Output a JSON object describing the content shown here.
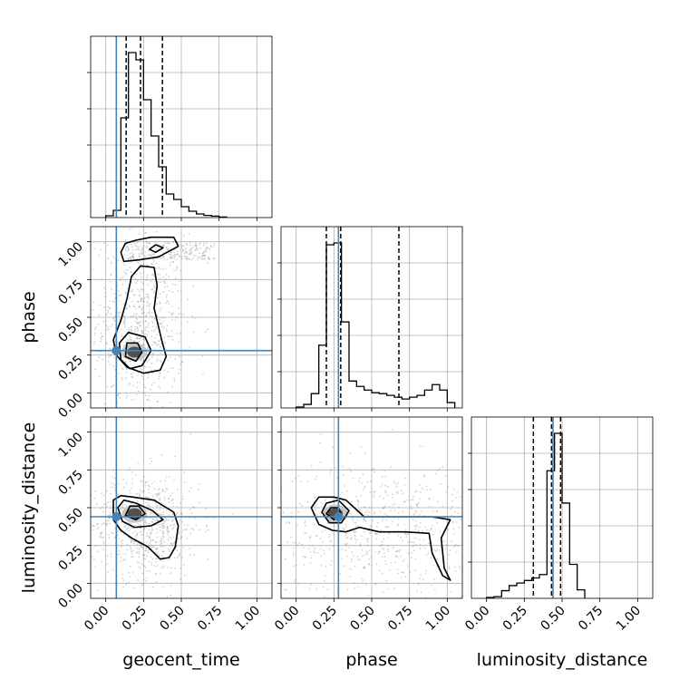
{
  "chart_data": {
    "type": "corner",
    "parameters": [
      "geocent_time",
      "phase",
      "luminosity_distance"
    ],
    "axis_range": [
      -0.1,
      1.1
    ],
    "ticks": [
      0.0,
      0.25,
      0.5,
      0.75,
      1.0
    ],
    "tick_labels": [
      "0.00",
      "0.25",
      "0.50",
      "0.75",
      "1.00"
    ],
    "grid": true,
    "injection_color": "#4682b4",
    "truths": {
      "geocent_time": 0.07,
      "phase": 0.28,
      "luminosity_distance": 0.44
    },
    "histograms": {
      "geocent_time": {
        "bin_edges": [
          0.0,
          0.05,
          0.1,
          0.15,
          0.2,
          0.25,
          0.3,
          0.35,
          0.4,
          0.45,
          0.5,
          0.55,
          0.6,
          0.65,
          0.7,
          0.75,
          0.8
        ],
        "counts": [
          0.01,
          0.04,
          0.55,
          0.91,
          0.87,
          0.65,
          0.45,
          0.28,
          0.13,
          0.1,
          0.06,
          0.035,
          0.02,
          0.012,
          0.008,
          0.003
        ],
        "quantiles": [
          0.135,
          0.23,
          0.375
        ]
      },
      "phase": {
        "bin_edges": [
          0.0,
          0.05,
          0.1,
          0.15,
          0.2,
          0.25,
          0.3,
          0.35,
          0.4,
          0.45,
          0.5,
          0.55,
          0.6,
          0.65,
          0.7,
          0.75,
          0.8,
          0.85,
          0.9,
          0.95,
          1.0,
          1.05
        ],
        "counts": [
          0.005,
          0.02,
          0.08,
          0.35,
          0.91,
          0.92,
          0.48,
          0.15,
          0.12,
          0.1,
          0.085,
          0.08,
          0.07,
          0.06,
          0.05,
          0.06,
          0.07,
          0.1,
          0.13,
          0.1,
          0.03
        ],
        "quantiles": [
          0.2,
          0.295,
          0.68
        ]
      },
      "luminosity_distance": {
        "bin_edges": [
          0.0,
          0.05,
          0.1,
          0.15,
          0.2,
          0.25,
          0.3,
          0.35,
          0.4,
          0.45,
          0.5,
          0.55,
          0.6,
          0.65
        ],
        "counts": [
          0.005,
          0.01,
          0.045,
          0.075,
          0.09,
          0.105,
          0.12,
          0.14,
          0.75,
          0.97,
          0.56,
          0.2,
          0.05
        ],
        "quantiles": [
          0.31,
          0.43,
          0.49
        ]
      }
    },
    "contours": {
      "phase_vs_geocent_time": [
        [
          [
            0.1,
            0.93
          ],
          [
            0.13,
            0.99
          ],
          [
            0.2,
            1.01
          ],
          [
            0.3,
            1.03
          ],
          [
            0.45,
            1.03
          ],
          [
            0.48,
            0.97
          ],
          [
            0.35,
            0.9
          ],
          [
            0.22,
            0.88
          ],
          [
            0.12,
            0.87
          ]
        ],
        [
          [
            0.29,
            0.95
          ],
          [
            0.33,
            0.98
          ],
          [
            0.38,
            0.96
          ],
          [
            0.33,
            0.93
          ]
        ],
        [
          [
            0.05,
            0.35
          ],
          [
            0.1,
            0.48
          ],
          [
            0.14,
            0.62
          ],
          [
            0.17,
            0.77
          ],
          [
            0.23,
            0.84
          ],
          [
            0.32,
            0.83
          ],
          [
            0.34,
            0.71
          ],
          [
            0.32,
            0.56
          ],
          [
            0.37,
            0.35
          ],
          [
            0.4,
            0.24
          ],
          [
            0.36,
            0.15
          ],
          [
            0.25,
            0.13
          ],
          [
            0.14,
            0.17
          ],
          [
            0.07,
            0.25
          ]
        ],
        [
          [
            0.1,
            0.22
          ],
          [
            0.09,
            0.33
          ],
          [
            0.15,
            0.4
          ],
          [
            0.26,
            0.37
          ],
          [
            0.3,
            0.28
          ],
          [
            0.24,
            0.18
          ],
          [
            0.16,
            0.16
          ]
        ],
        [
          [
            0.13,
            0.24
          ],
          [
            0.14,
            0.33
          ],
          [
            0.21,
            0.33
          ],
          [
            0.24,
            0.27
          ],
          [
            0.2,
            0.21
          ]
        ]
      ],
      "luminosity_distance_vs_geocent_time": [
        [
          [
            0.05,
            0.55
          ],
          [
            0.1,
            0.58
          ],
          [
            0.18,
            0.57
          ],
          [
            0.32,
            0.55
          ],
          [
            0.45,
            0.47
          ],
          [
            0.48,
            0.38
          ],
          [
            0.46,
            0.24
          ],
          [
            0.42,
            0.17
          ],
          [
            0.36,
            0.16
          ],
          [
            0.28,
            0.24
          ],
          [
            0.17,
            0.3
          ],
          [
            0.1,
            0.35
          ],
          [
            0.05,
            0.42
          ]
        ],
        [
          [
            0.08,
            0.5
          ],
          [
            0.12,
            0.55
          ],
          [
            0.2,
            0.53
          ],
          [
            0.31,
            0.48
          ],
          [
            0.38,
            0.42
          ],
          [
            0.3,
            0.38
          ],
          [
            0.19,
            0.37
          ],
          [
            0.11,
            0.41
          ]
        ],
        [
          [
            0.13,
            0.45
          ],
          [
            0.16,
            0.51
          ],
          [
            0.22,
            0.51
          ],
          [
            0.26,
            0.46
          ],
          [
            0.2,
            0.42
          ]
        ]
      ],
      "luminosity_distance_vs_phase": [
        [
          [
            0.1,
            0.5
          ],
          [
            0.15,
            0.57
          ],
          [
            0.25,
            0.57
          ],
          [
            0.33,
            0.55
          ],
          [
            0.45,
            0.44
          ],
          [
            0.7,
            0.44
          ],
          [
            0.9,
            0.44
          ],
          [
            1.02,
            0.42
          ],
          [
            0.96,
            0.3
          ],
          [
            0.98,
            0.1
          ],
          [
            1.02,
            0.02
          ],
          [
            0.97,
            0.05
          ],
          [
            0.9,
            0.2
          ],
          [
            0.88,
            0.33
          ],
          [
            0.72,
            0.34
          ],
          [
            0.55,
            0.34
          ],
          [
            0.42,
            0.37
          ],
          [
            0.33,
            0.34
          ],
          [
            0.24,
            0.35
          ],
          [
            0.15,
            0.39
          ]
        ],
        [
          [
            0.17,
            0.47
          ],
          [
            0.2,
            0.53
          ],
          [
            0.28,
            0.55
          ],
          [
            0.35,
            0.48
          ],
          [
            0.3,
            0.4
          ],
          [
            0.22,
            0.4
          ]
        ],
        [
          [
            0.2,
            0.46
          ],
          [
            0.23,
            0.5
          ],
          [
            0.28,
            0.5
          ],
          [
            0.3,
            0.45
          ],
          [
            0.25,
            0.42
          ]
        ]
      ]
    },
    "density_cores": {
      "phase_vs_geocent_time": [
        0.19,
        0.27
      ],
      "luminosity_distance_vs_geocent_time": [
        0.19,
        0.46
      ],
      "luminosity_distance_vs_phase": [
        0.26,
        0.46
      ]
    }
  }
}
